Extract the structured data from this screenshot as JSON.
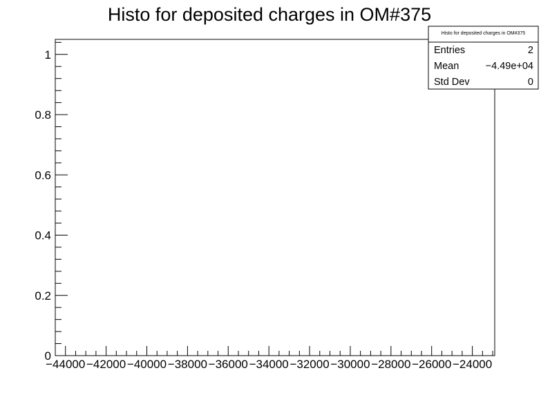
{
  "chart_data": {
    "type": "bar",
    "title": "Histo for deposited charges in OM#375",
    "xlabel": "",
    "ylabel": "",
    "xlim": [
      -44500,
      -22900
    ],
    "ylim": [
      0,
      1.05
    ],
    "x_ticks": [
      -44000,
      -42000,
      -40000,
      -38000,
      -36000,
      -34000,
      -32000,
      -30000,
      -28000,
      -26000,
      -24000
    ],
    "x_tick_labels": [
      "−44000",
      "−42000",
      "−40000",
      "−38000",
      "−36000",
      "−34000",
      "−32000",
      "−30000",
      "−28000",
      "−26000",
      "−24000"
    ],
    "y_ticks": [
      0,
      0.2,
      0.4,
      0.6,
      0.8,
      1
    ],
    "y_tick_labels": [
      "0",
      "0.2",
      "0.4",
      "0.6",
      "0.8",
      "1"
    ],
    "bins": [],
    "grid": false,
    "stats_box": {
      "title": "Histo for deposited charges in OM#375",
      "placement": "top-right",
      "rows": [
        {
          "label": "Entries",
          "value": "2"
        },
        {
          "label": "Mean",
          "value": "−4.49e+04"
        },
        {
          "label": "Std Dev",
          "value": "0"
        }
      ]
    }
  }
}
